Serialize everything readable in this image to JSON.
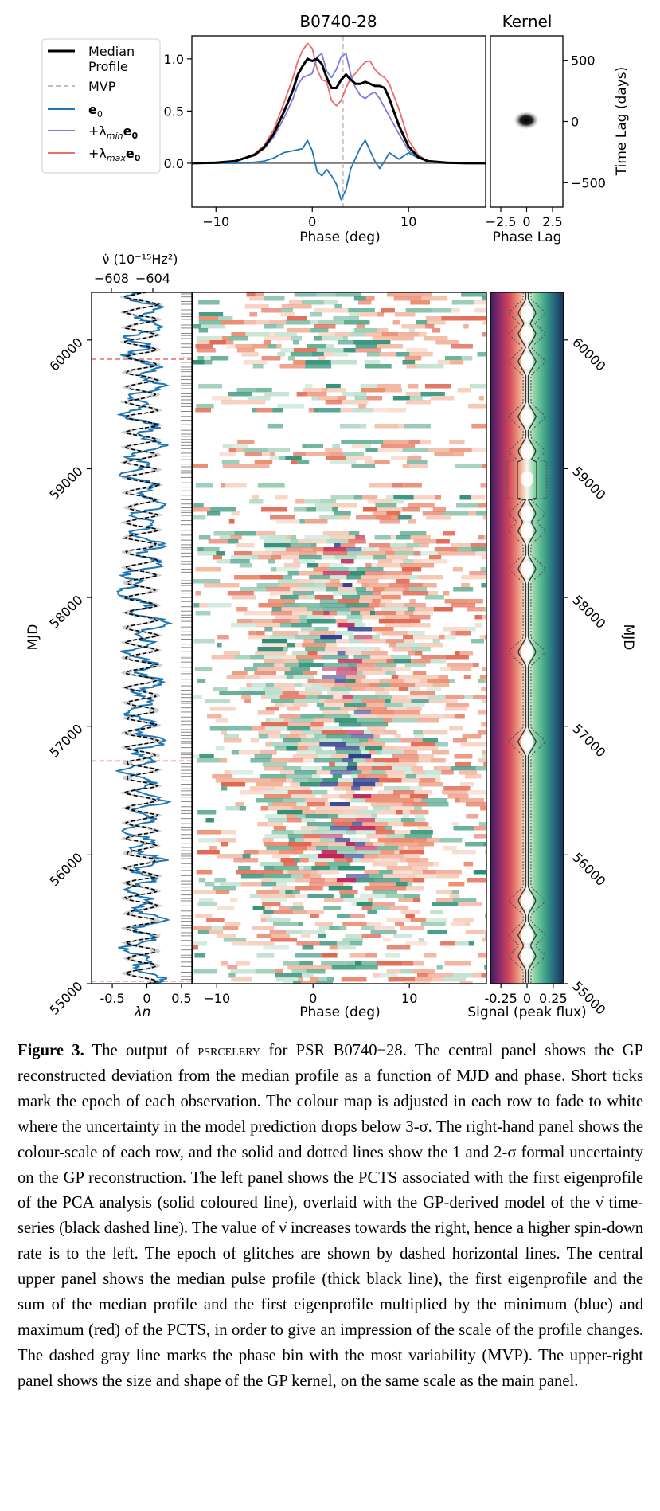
{
  "figure": {
    "chart_data": [
      {
        "type": "line",
        "title": "B0740-28",
        "xlabel": "Phase (deg)",
        "ylabel": "",
        "xlim": [
          -12.5,
          18
        ],
        "ylim": [
          -0.42,
          1.22
        ],
        "x_ticks": [
          "−10",
          "0",
          "10"
        ],
        "y_ticks": [
          "0.0",
          "0.5",
          "1.0"
        ],
        "mvp_phase": 3.2,
        "legend_placement": "upper-left",
        "legend": [
          {
            "key": "median",
            "prefix": "",
            "sym": "Median",
            "sub": "",
            "suffix": "",
            "line2": "Profile",
            "color": "#000000",
            "dash": ""
          },
          {
            "key": "mvp",
            "prefix": "",
            "sym": "MVP",
            "sub": "",
            "suffix": "",
            "line2": "",
            "color": "#bdbdbd",
            "dash": "6,4"
          },
          {
            "key": "e0",
            "prefix": "",
            "sym": "e",
            "sub": "0",
            "suffix": "",
            "line2": "",
            "color": "#1f77b4",
            "dash": ""
          },
          {
            "key": "min",
            "prefix": "+λ",
            "sym": "min",
            "sub": "",
            "suffix": "e0",
            "line2": "",
            "color": "#7b7be0",
            "dash": ""
          },
          {
            "key": "max",
            "prefix": "+λ",
            "sym": "max",
            "sub": "",
            "suffix": "e0",
            "line2": "",
            "color": "#ee6b6b",
            "dash": ""
          }
        ],
        "series": [
          {
            "name": "Median Profile",
            "color": "#000000",
            "x": [
              -12.5,
              -10,
              -8,
              -6,
              -5,
              -4,
              -3,
              -2,
              -1.5,
              -1,
              -0.5,
              0,
              0.5,
              1,
              1.5,
              2,
              2.5,
              3,
              3.5,
              4,
              4.5,
              5,
              5.5,
              6,
              6.5,
              7,
              7.5,
              8,
              9,
              10,
              11,
              12,
              14,
              16,
              18
            ],
            "y": [
              0,
              0.005,
              0.02,
              0.08,
              0.15,
              0.28,
              0.48,
              0.7,
              0.85,
              0.93,
              1.0,
              0.98,
              1.0,
              0.95,
              0.82,
              0.72,
              0.72,
              0.8,
              0.85,
              0.8,
              0.76,
              0.76,
              0.78,
              0.76,
              0.74,
              0.74,
              0.72,
              0.62,
              0.36,
              0.16,
              0.06,
              0.02,
              0.005,
              0,
              0
            ]
          },
          {
            "name": "e0",
            "color": "#1f77b4",
            "x": [
              -12.5,
              -8,
              -6,
              -5,
              -4,
              -3,
              -2,
              -1,
              -0.5,
              0,
              0.5,
              1,
              1.5,
              2,
              2.5,
              3,
              3.5,
              4,
              4.5,
              5,
              5.5,
              6,
              6.5,
              7,
              7.5,
              8,
              9,
              10,
              11,
              12,
              14,
              18
            ],
            "y": [
              0,
              0,
              0.01,
              0.02,
              0.05,
              0.1,
              0.12,
              0.14,
              0.22,
              0.12,
              -0.08,
              -0.12,
              -0.06,
              -0.12,
              -0.2,
              -0.35,
              -0.25,
              -0.05,
              0.05,
              0.15,
              0.22,
              0.12,
              0.02,
              -0.05,
              0.02,
              0.1,
              0.04,
              0.1,
              0.05,
              0.02,
              0,
              0
            ]
          },
          {
            "name": "+λmin e0",
            "color": "#7b7be0",
            "x": [
              -12.5,
              -10,
              -8,
              -6,
              -5,
              -4,
              -3,
              -2,
              -1.5,
              -1,
              -0.5,
              0,
              0.5,
              1,
              1.5,
              2,
              2.5,
              3,
              3.5,
              4,
              4.5,
              5,
              5.5,
              6,
              6.5,
              7,
              8,
              9,
              10,
              11,
              12,
              14,
              18
            ],
            "y": [
              0,
              0.005,
              0.02,
              0.08,
              0.14,
              0.25,
              0.42,
              0.62,
              0.75,
              0.82,
              0.84,
              0.86,
              1.02,
              1.05,
              0.88,
              0.82,
              0.9,
              1.02,
              1.05,
              0.85,
              0.72,
              0.65,
              0.62,
              0.66,
              0.68,
              0.62,
              0.45,
              0.28,
              0.12,
              0.05,
              0.02,
              0,
              0
            ]
          },
          {
            "name": "+λmax e0",
            "color": "#ee6b6b",
            "x": [
              -12.5,
              -10,
              -8,
              -6,
              -5,
              -4,
              -3,
              -2,
              -1.5,
              -1,
              -0.5,
              0,
              0.5,
              1,
              1.5,
              2,
              2.5,
              3,
              3.5,
              4,
              4.5,
              5,
              5.5,
              6,
              6.5,
              7,
              7.5,
              8,
              9,
              10,
              11,
              12,
              14,
              18
            ],
            "y": [
              0,
              0.005,
              0.02,
              0.09,
              0.17,
              0.32,
              0.56,
              0.82,
              0.98,
              1.08,
              1.15,
              1.1,
              0.9,
              0.8,
              0.78,
              0.6,
              0.55,
              0.6,
              0.72,
              0.82,
              0.86,
              0.92,
              0.97,
              0.98,
              0.9,
              0.85,
              0.82,
              0.76,
              0.52,
              0.22,
              0.08,
              0.02,
              0.005,
              0
            ]
          }
        ]
      },
      {
        "type": "heatmap",
        "title": "Kernel",
        "xlabel": "Phase Lag",
        "ylabel": "Time Lag (days)",
        "xlim": [
          -3.5,
          3.5
        ],
        "ylim": [
          -700,
          700
        ],
        "x_ticks": [
          "−2.5",
          "0",
          "2.5"
        ],
        "y_ticks": [
          "500",
          "0",
          "−500"
        ]
      },
      {
        "type": "line",
        "title": "",
        "xlabel": "λn",
        "top_xlabel": "ν̇ (10⁻¹⁵Hz²)",
        "ylabel": "MJD",
        "xlim": [
          -0.8,
          0.65
        ],
        "ylim": [
          55000,
          60370
        ],
        "x_ticks": [
          "-0.5",
          "0",
          "0.5"
        ],
        "top_x_ticks": [
          "−608",
          "−604"
        ],
        "y_ticks": [
          "55000",
          "56000",
          "57000",
          "58000",
          "59000",
          "60000"
        ],
        "glitch_mjd": [
          55020,
          56730,
          59850
        ],
        "series": [
          {
            "name": "λn",
            "color": "#1f77b4"
          },
          {
            "name": "ν̇ model",
            "color": "#000000"
          }
        ]
      },
      {
        "type": "heatmap",
        "title": "",
        "xlabel": "Phase (deg)",
        "ylabel": "",
        "xlim": [
          -12.5,
          18
        ],
        "ylim": [
          55000,
          60370
        ],
        "x_ticks": [
          "−10",
          "0",
          "10"
        ]
      },
      {
        "type": "area",
        "title": "",
        "xlabel": "Signal (peak flux)",
        "ylabel": "MJD",
        "xlim": [
          -0.35,
          0.35
        ],
        "ylim": [
          55000,
          60370
        ],
        "x_ticks": [
          "-0.25",
          "0",
          "0.25"
        ],
        "y_ticks": [
          "55000",
          "56000",
          "57000",
          "58000",
          "59000",
          "60000"
        ]
      }
    ]
  },
  "caption": {
    "label": "Figure 3.",
    "t1": " The output of ",
    "smallcaps": "psrcelery",
    "t2": " for PSR B0740−28. The central panel shows the GP reconstructed deviation from the median profile as a function of MJD and phase. Short ticks mark the epoch of each observation. The colour map is adjusted in each row to fade to white where the uncertainty in the model prediction drops below 3-σ. The right-hand panel shows the colour-scale of each row, and the solid and dotted lines show the 1 and 2-σ formal uncertainty on the GP reconstruction. The left panel shows the PCTS associated with the first eigenprofile of the PCA analysis (solid coloured line), overlaid with the GP-derived model of the ν̇ time-series (black dashed line). The value of ν̇ increases towards the right, hence a higher spin-down rate is to the left. The epoch of glitches are shown by dashed horizontal lines. The central upper panel shows the median pulse profile (thick black line), the first eigenprofile and the sum of the median profile and the first eigenprofile multiplied by the minimum (blue) and maximum (red) of the PCTS, in order to give an impression of the scale of the profile changes. The dashed gray line marks the phase bin with the most variability (MVP). The upper-right panel shows the size and shape of the GP kernel, on the same scale as the main panel."
  }
}
